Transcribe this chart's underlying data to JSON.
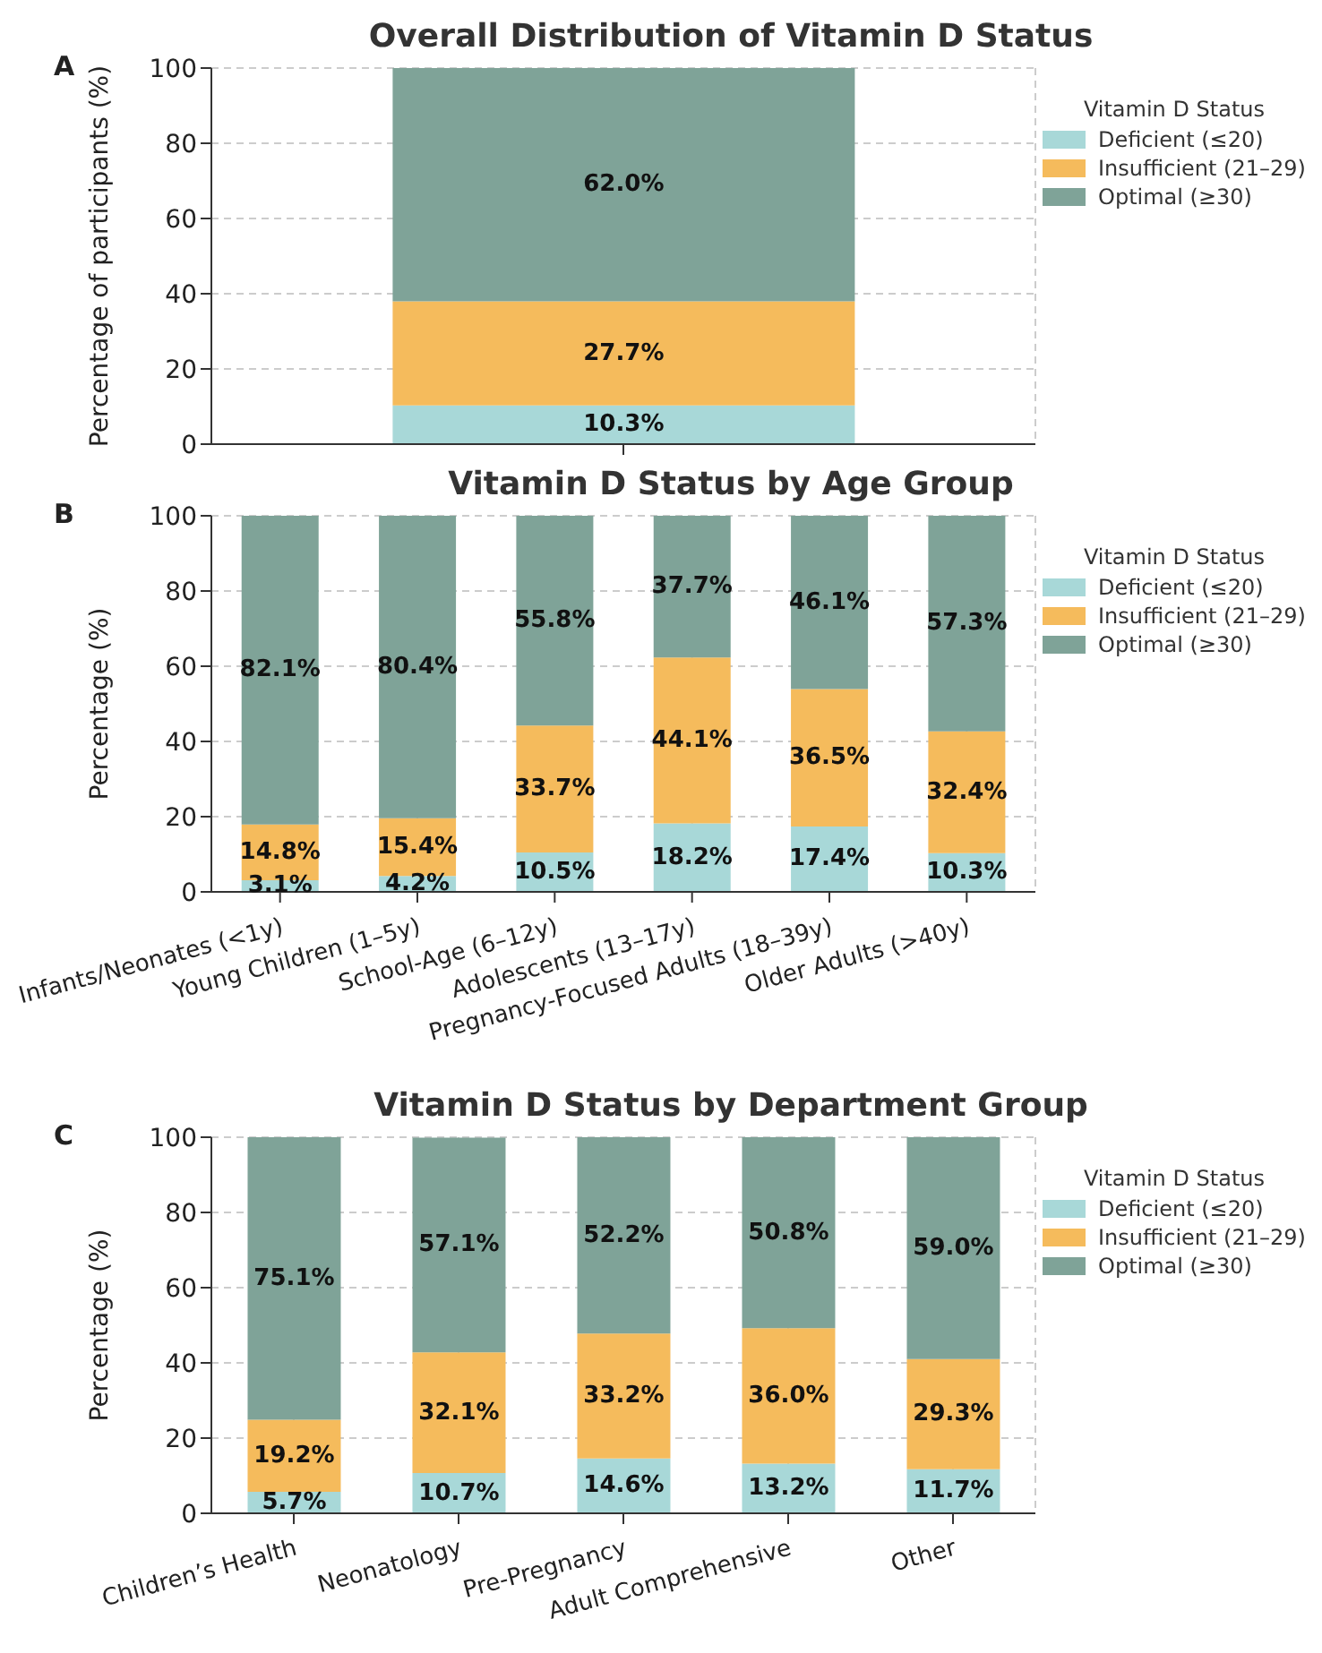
{
  "chart_data": [
    {
      "type": "bar",
      "title": "Overall Distribution of Vitamin D Status",
      "ylabel": "Percentage of participants (%)",
      "legend_title": "Vitamin D Status",
      "annotations": [
        "A"
      ],
      "categories": [
        null
      ],
      "stacked": true,
      "ylim": [
        0,
        100
      ],
      "yticks": [
        0,
        20,
        40,
        60,
        80,
        100
      ],
      "grid": true,
      "legend": "right",
      "series": [
        {
          "name": "Deficient (≤20)",
          "color": "#a8d8d8",
          "values": [
            10.3
          ],
          "value_labels": [
            "10.3%"
          ]
        },
        {
          "name": "Insufficient (21–29)",
          "color": "#f5bb5c",
          "values": [
            27.7
          ],
          "value_labels": [
            "27.7%"
          ]
        },
        {
          "name": "Optimal (≥30)",
          "color": "#7fa398",
          "values": [
            62.0
          ],
          "value_labels": [
            "62.0%"
          ]
        }
      ]
    },
    {
      "type": "bar",
      "title": "Vitamin D Status by Age Group",
      "ylabel": "Percentage (%)",
      "legend_title": "Vitamin D Status",
      "annotations": [
        "B"
      ],
      "categories": [
        "Infants/Neonates (<1y)",
        "Young Children (1–5y)",
        "School-Age (6–12y)",
        "Adolescents (13–17y)",
        "Pregnancy-Focused Adults (18–39y)",
        "Older Adults (>40y)"
      ],
      "stacked": true,
      "ylim": [
        0,
        100
      ],
      "yticks": [
        0,
        20,
        40,
        60,
        80,
        100
      ],
      "grid": true,
      "legend": "right",
      "series": [
        {
          "name": "Deficient (≤20)",
          "color": "#a8d8d8",
          "values": [
            3.1,
            4.2,
            10.5,
            18.2,
            17.4,
            10.3
          ],
          "value_labels": [
            "3.1%",
            "4.2%",
            "10.5%",
            "18.2%",
            "17.4%",
            "10.3%"
          ]
        },
        {
          "name": "Insufficient (21–29)",
          "color": "#f5bb5c",
          "values": [
            14.8,
            15.4,
            33.7,
            44.1,
            36.5,
            32.4
          ],
          "value_labels": [
            "14.8%",
            "15.4%",
            "33.7%",
            "44.1%",
            "36.5%",
            "32.4%"
          ]
        },
        {
          "name": "Optimal (≥30)",
          "color": "#7fa398",
          "values": [
            82.1,
            80.4,
            55.8,
            37.7,
            46.1,
            57.3
          ],
          "value_labels": [
            "82.1%",
            "80.4%",
            "55.8%",
            "37.7%",
            "46.1%",
            "57.3%"
          ]
        }
      ]
    },
    {
      "type": "bar",
      "title": "Vitamin D Status by Department Group",
      "ylabel": "Percentage (%)",
      "legend_title": "Vitamin D Status",
      "annotations": [
        "C"
      ],
      "categories": [
        "Children’s Health",
        "Neonatology",
        "Pre-Pregnancy",
        "Adult Comprehensive",
        "Other"
      ],
      "stacked": true,
      "ylim": [
        0,
        100
      ],
      "yticks": [
        0,
        20,
        40,
        60,
        80,
        100
      ],
      "grid": true,
      "legend": "right",
      "series": [
        {
          "name": "Deficient (≤20)",
          "color": "#a8d8d8",
          "values": [
            5.7,
            10.7,
            14.6,
            13.2,
            11.7
          ],
          "value_labels": [
            "5.7%",
            "10.7%",
            "14.6%",
            "13.2%",
            "11.7%"
          ]
        },
        {
          "name": "Insufficient (21–29)",
          "color": "#f5bb5c",
          "values": [
            19.2,
            32.1,
            33.2,
            36.0,
            29.3
          ],
          "value_labels": [
            "19.2%",
            "32.1%",
            "33.2%",
            "36.0%",
            "29.3%"
          ]
        },
        {
          "name": "Optimal (≥30)",
          "color": "#7fa398",
          "values": [
            75.1,
            57.1,
            52.2,
            50.8,
            59.0
          ],
          "value_labels": [
            "75.1%",
            "57.1%",
            "52.2%",
            "50.8%",
            "59.0%"
          ]
        }
      ]
    }
  ]
}
